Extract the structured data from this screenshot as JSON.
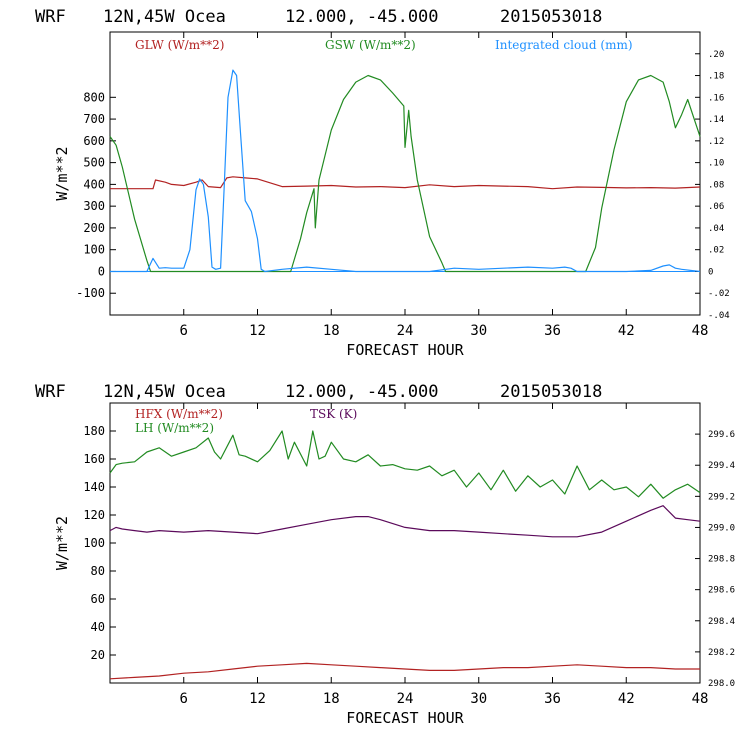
{
  "chart_data": [
    {
      "type": "line",
      "header": {
        "model": "WRF",
        "location": "12N,45W Ocea",
        "coords": "12.000, -45.000",
        "date": "2015053018"
      },
      "xlabel": "FORECAST HOUR",
      "ylabel": "W/m**2",
      "xlim": [
        0,
        48
      ],
      "x_ticks": [
        6,
        12,
        18,
        24,
        30,
        36,
        42,
        48
      ],
      "ylim": [
        -200,
        1100
      ],
      "y_ticks": [
        -100,
        0,
        100,
        200,
        300,
        400,
        500,
        600,
        700,
        800
      ],
      "y_tick_labels": [
        "-100",
        "0",
        "100",
        "200",
        "300",
        "400",
        "500",
        "600",
        "700",
        "800"
      ],
      "right_axis": {
        "label": "Integrated cloud (mm)",
        "ylim": [
          -0.04,
          0.22
        ],
        "ticks": [
          -0.04,
          -0.02,
          0,
          0.02,
          0.04,
          0.06,
          0.08,
          0.1,
          0.12,
          0.14,
          0.16,
          0.18,
          0.2
        ],
        "tick_labels": [
          "-.04",
          "-.02",
          "0",
          ".02",
          ".04",
          ".06",
          ".08",
          ".10",
          ".12",
          ".14",
          ".16",
          ".18",
          ".20"
        ]
      },
      "zero_line": 0,
      "series": [
        {
          "name": "GLW (W/m**2)",
          "color": "#b22222",
          "axis": "left",
          "x": [
            0,
            3.5,
            3.7,
            4.5,
            5,
            6,
            7,
            7.5,
            8,
            9,
            9.5,
            10,
            11,
            12,
            14,
            16,
            18,
            20,
            22,
            24,
            26,
            28,
            30,
            32,
            34,
            36,
            38,
            40,
            42,
            44,
            46,
            48
          ],
          "y": [
            380,
            380,
            420,
            410,
            400,
            395,
            410,
            420,
            390,
            385,
            430,
            435,
            430,
            425,
            390,
            392,
            395,
            388,
            390,
            385,
            398,
            390,
            395,
            392,
            390,
            380,
            388,
            386,
            384,
            385,
            383,
            388
          ]
        },
        {
          "name": "GSW (W/m**2)",
          "color": "#228b22",
          "axis": "left",
          "x": [
            0,
            0.5,
            1,
            2,
            3,
            3.3,
            14.7,
            15.5,
            16,
            16.6,
            16.7,
            17,
            18,
            19,
            20,
            21,
            22,
            23,
            23.9,
            24.0,
            24.3,
            24.5,
            25,
            26,
            27,
            27.3,
            38.7,
            39.5,
            40,
            41,
            42,
            43,
            44,
            45,
            45.5,
            46,
            46.5,
            47,
            48
          ],
          "y": [
            620,
            580,
            480,
            240,
            50,
            0,
            0,
            150,
            270,
            380,
            200,
            420,
            650,
            790,
            870,
            900,
            880,
            820,
            760,
            570,
            740,
            620,
            420,
            160,
            40,
            0,
            0,
            110,
            290,
            560,
            780,
            880,
            900,
            870,
            780,
            660,
            720,
            790,
            620
          ]
        },
        {
          "name": "Integrated cloud (mm)",
          "color": "#1e90ff",
          "axis": "right",
          "x": [
            0,
            3,
            3.5,
            4,
            4.5,
            5,
            6,
            6.5,
            7,
            7.3,
            7.6,
            8,
            8.3,
            8.6,
            9,
            9.3,
            9.6,
            10,
            10.3,
            10.6,
            11,
            11.5,
            12,
            12.3,
            12.6,
            14,
            16,
            18,
            20,
            22,
            24,
            26,
            28,
            30,
            32,
            34,
            36,
            37,
            37.5,
            38,
            40,
            42,
            44,
            45,
            45.5,
            46,
            46.5,
            48
          ],
          "y": [
            0,
            0,
            0.012,
            0.003,
            0.0035,
            0.003,
            0.003,
            0.02,
            0.075,
            0.085,
            0.08,
            0.05,
            0.004,
            0.002,
            0.003,
            0.08,
            0.16,
            0.185,
            0.18,
            0.13,
            0.065,
            0.055,
            0.03,
            0.002,
            0,
            0.002,
            0.004,
            0.002,
            0,
            0,
            0,
            0,
            0.003,
            0.002,
            0.003,
            0.004,
            0.003,
            0.004,
            0.003,
            0,
            0,
            0,
            0.001,
            0.005,
            0.006,
            0.003,
            0.002,
            0
          ]
        }
      ],
      "legend": [
        "GLW (W/m**2)",
        "GSW (W/m**2)",
        "Integrated cloud (mm)"
      ]
    },
    {
      "type": "line",
      "header": {
        "model": "WRF",
        "location": "12N,45W Ocea",
        "coords": "12.000, -45.000",
        "date": "2015053018"
      },
      "xlabel": "FORECAST HOUR",
      "ylabel": "W/m**2",
      "xlim": [
        0,
        48
      ],
      "x_ticks": [
        6,
        12,
        18,
        24,
        30,
        36,
        42,
        48
      ],
      "ylim": [
        0,
        200
      ],
      "y_ticks": [
        20,
        40,
        60,
        80,
        100,
        120,
        140,
        160,
        180
      ],
      "y_tick_labels": [
        "20",
        "40",
        "60",
        "80",
        "100",
        "120",
        "140",
        "160",
        "180"
      ],
      "right_axis": {
        "label": "TSK (K)",
        "ylim": [
          298.0,
          299.8
        ],
        "ticks": [
          298.0,
          298.2,
          298.4,
          298.6,
          298.8,
          299.0,
          299.2,
          299.4,
          299.6
        ],
        "tick_labels": [
          "298.0",
          "298.2",
          "298.4",
          "298.6",
          "298.8",
          "299.0",
          "299.2",
          "299.4",
          "299.6"
        ]
      },
      "series": [
        {
          "name": "HFX (W/m**2)",
          "color": "#b22222",
          "axis": "left",
          "x": [
            0,
            2,
            4,
            6,
            8,
            10,
            12,
            14,
            16,
            18,
            20,
            22,
            24,
            26,
            28,
            30,
            32,
            34,
            36,
            38,
            40,
            42,
            44,
            46,
            48
          ],
          "y": [
            3,
            4,
            5,
            7,
            8,
            10,
            12,
            13,
            14,
            13,
            12,
            11,
            10,
            9,
            9,
            10,
            11,
            11,
            12,
            13,
            12,
            11,
            11,
            10,
            10
          ]
        },
        {
          "name": "LH (W/m**2)",
          "color": "#228b22",
          "axis": "left",
          "x": [
            0,
            0.5,
            1,
            2,
            3,
            4,
            5,
            6,
            7,
            8,
            8.5,
            9,
            10,
            10.5,
            11,
            12,
            13,
            14,
            14.5,
            15,
            16,
            16.5,
            17,
            17.5,
            18,
            19,
            20,
            21,
            22,
            23,
            24,
            25,
            26,
            27,
            28,
            29,
            30,
            31,
            32,
            33,
            34,
            35,
            36,
            37,
            38,
            39,
            40,
            41,
            42,
            43,
            44,
            45,
            46,
            47,
            48
          ],
          "y": [
            150,
            156,
            157,
            158,
            165,
            168,
            162,
            165,
            168,
            175,
            165,
            160,
            177,
            163,
            162,
            158,
            166,
            180,
            160,
            172,
            155,
            180,
            160,
            162,
            172,
            160,
            158,
            163,
            155,
            156,
            153,
            152,
            155,
            148,
            152,
            140,
            150,
            138,
            152,
            137,
            148,
            140,
            145,
            135,
            155,
            138,
            145,
            138,
            140,
            133,
            142,
            132,
            138,
            142,
            136
          ]
        },
        {
          "name": "TSK (K)",
          "color": "#5b0a5b",
          "axis": "right",
          "x": [
            0,
            0.5,
            1,
            2,
            3,
            4,
            6,
            8,
            10,
            12,
            14,
            16,
            18,
            20,
            21,
            22,
            24,
            26,
            28,
            30,
            32,
            34,
            36,
            38,
            40,
            42,
            44,
            45,
            46,
            47,
            48
          ],
          "y": [
            298.98,
            299.0,
            298.99,
            298.98,
            298.97,
            298.98,
            298.97,
            298.98,
            298.97,
            298.96,
            298.99,
            299.02,
            299.05,
            299.07,
            299.07,
            299.05,
            299.0,
            298.98,
            298.98,
            298.97,
            298.96,
            298.95,
            298.94,
            298.94,
            298.97,
            299.04,
            299.11,
            299.14,
            299.06,
            299.05,
            299.04
          ]
        }
      ],
      "legend": [
        "HFX (W/m**2)",
        "LH (W/m**2)",
        "TSK (K)"
      ]
    }
  ]
}
